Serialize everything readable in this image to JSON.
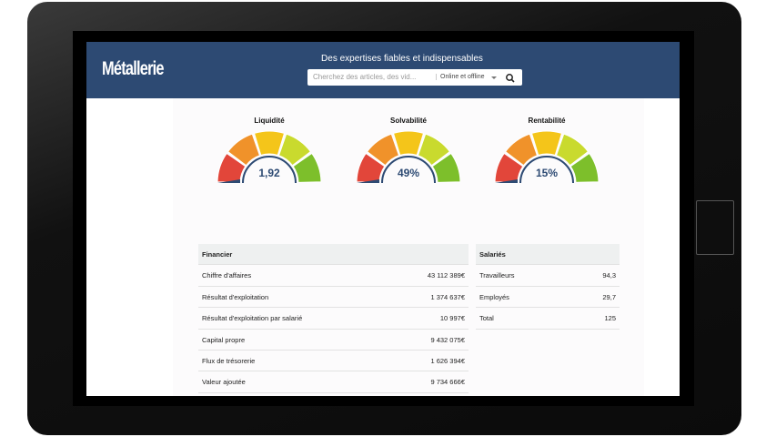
{
  "header": {
    "logo": "Métallerie",
    "tagline": "Des expertises fiables et indispensables",
    "search_placeholder": "Cherchez des articles, des vid...",
    "filter": "Online et offline"
  },
  "gauges": [
    {
      "label": "Liquidité",
      "value": "1,92"
    },
    {
      "label": "Solvabilité",
      "value": "49%"
    },
    {
      "label": "Rentabilité",
      "value": "15%"
    }
  ],
  "tables": [
    {
      "title": "Financier",
      "rows": [
        [
          "Chiffre d'affaires",
          "43 112 389€"
        ],
        [
          "Résultat d'exploitation",
          "1 374 637€"
        ],
        [
          "Résultat d'exploitation par salarié",
          "10 997€"
        ],
        [
          "Capital propre",
          "9 432 075€"
        ],
        [
          "Flux de trésorerie",
          "1 626 394€"
        ],
        [
          "Valeur ajoutée",
          "9 734 666€"
        ]
      ]
    },
    {
      "title": "Salariés",
      "rows": [
        [
          "Travailleurs",
          "94,3"
        ],
        [
          "Employés",
          "29,7"
        ],
        [
          "Total",
          "125"
        ]
      ]
    }
  ]
}
